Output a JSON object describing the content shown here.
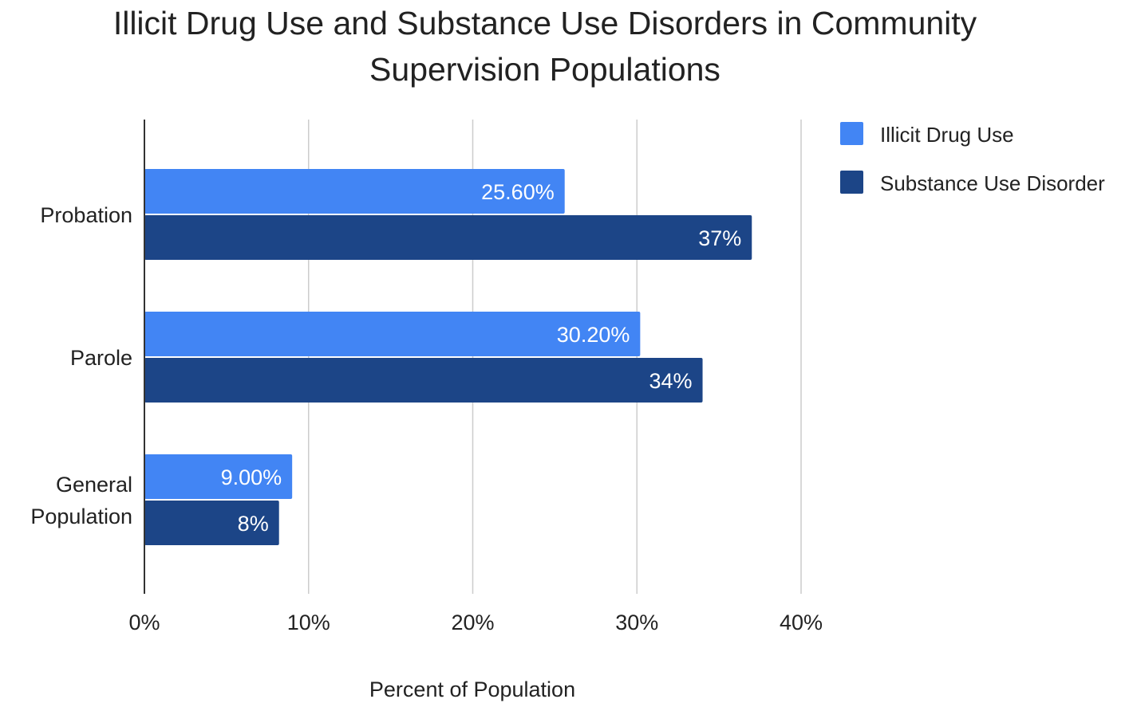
{
  "chart_data": {
    "type": "bar",
    "orientation": "horizontal",
    "title_lines": [
      "Illicit Drug Use and Substance Use Disorders in Community",
      "Supervision Populations"
    ],
    "categories": [
      {
        "lines": [
          "Probation"
        ]
      },
      {
        "lines": [
          "Parole"
        ]
      },
      {
        "lines": [
          "General",
          "Population"
        ]
      }
    ],
    "series": [
      {
        "name": "Illicit Drug Use",
        "color": "#4285f4",
        "values": [
          25.6,
          30.2,
          9.0
        ],
        "labels": [
          "25.60%",
          "30.20%",
          "9.00%"
        ]
      },
      {
        "name": "Substance Use Disorder",
        "color": "#1c4587",
        "values": [
          37,
          34,
          8.2
        ],
        "labels": [
          "37%",
          "34%",
          "8%"
        ]
      }
    ],
    "xlim": [
      0,
      40
    ],
    "xticks": [
      {
        "value": 0,
        "label": "0%"
      },
      {
        "value": 10,
        "label": "10%"
      },
      {
        "value": 20,
        "label": "20%"
      },
      {
        "value": 30,
        "label": "30%"
      },
      {
        "value": 40,
        "label": "40%"
      }
    ],
    "xlabel": "Percent of Population",
    "ylabel": "",
    "grid": true,
    "legend_position": "top-right"
  }
}
